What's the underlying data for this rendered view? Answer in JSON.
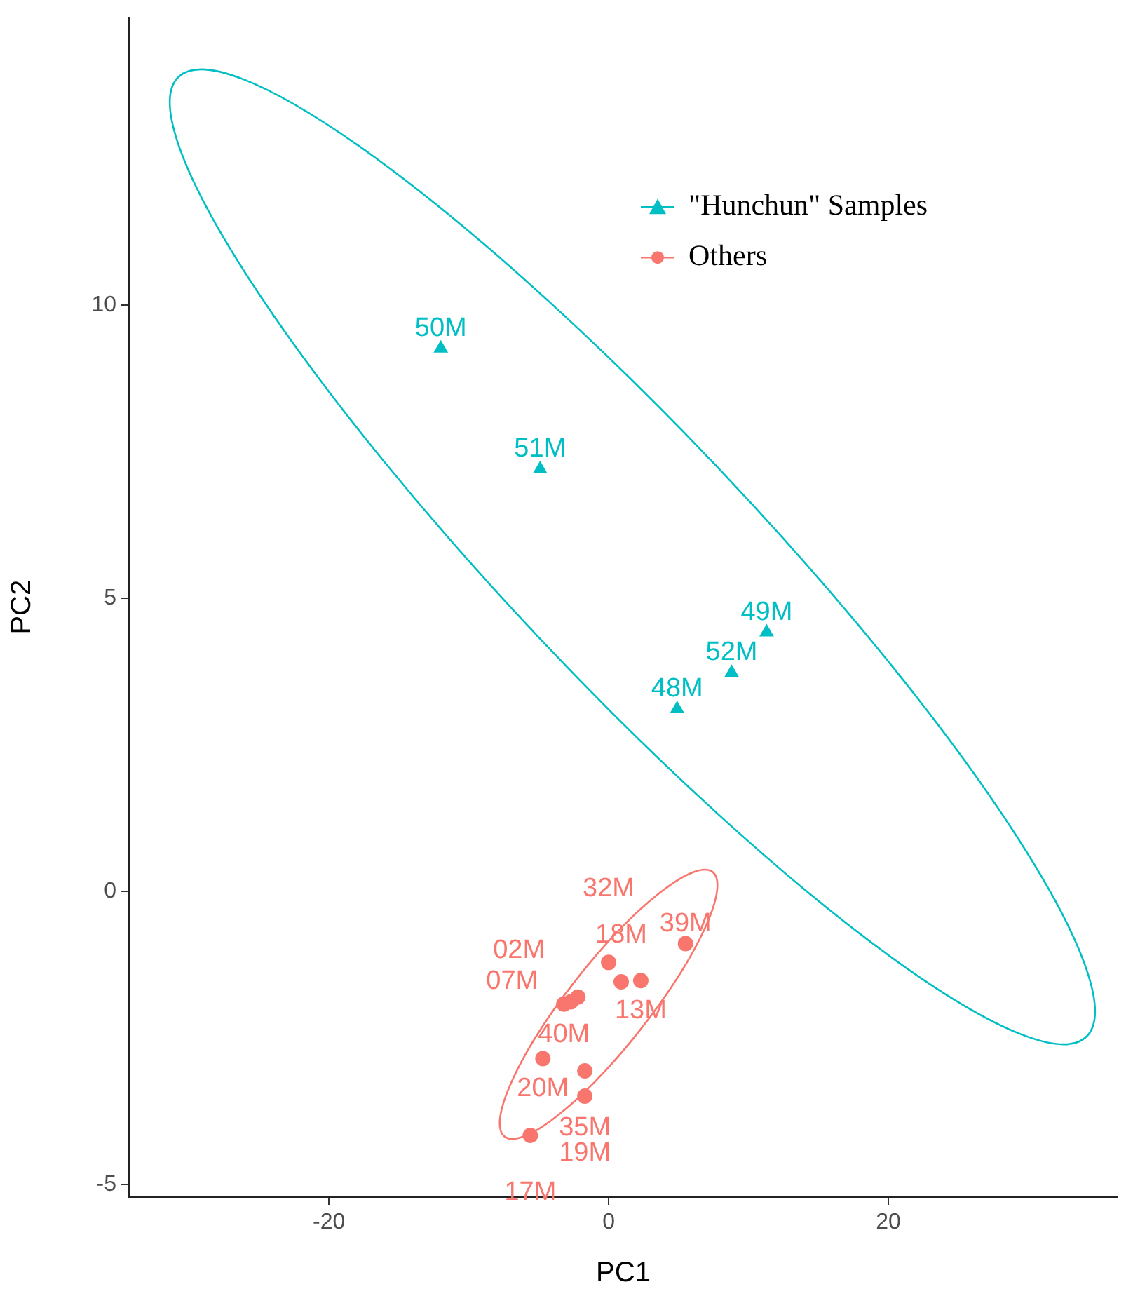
{
  "chart_data": {
    "type": "scatter",
    "xlabel": "PC1",
    "ylabel": "PC2",
    "xlim": [
      -34.3,
      36.4
    ],
    "ylim": [
      -5.2,
      14.9
    ],
    "xticks": [
      -20,
      0,
      20
    ],
    "yticks": [
      -5,
      0,
      5,
      10
    ],
    "grid": false,
    "legend": "top right",
    "series": [
      {
        "name": "\"Hunchun\" Samples",
        "color": "#00bfc4",
        "type": "scatter",
        "marker": "triangle",
        "x": [
          -12.0,
          -4.9,
          11.3,
          8.8,
          4.9
        ],
        "values": [
          9.26,
          7.2,
          4.42,
          3.73,
          3.11
        ]
      },
      {
        "name": "Others",
        "color": "#f8766d",
        "type": "scatter",
        "marker": "circle",
        "x": [
          5.5,
          2.3,
          0.9,
          0.0,
          -3.2,
          -2.7,
          -2.2,
          -4.7,
          -1.7,
          -1.7,
          -5.6
        ],
        "values": [
          -0.89,
          -1.52,
          -1.54,
          -1.21,
          -1.92,
          -1.88,
          -1.8,
          -2.85,
          -3.06,
          -3.49,
          -4.16
        ]
      }
    ],
    "annotations": [
      {
        "text": "50M",
        "x": -12.0,
        "y": 9.26
      },
      {
        "text": "51M",
        "x": -4.9,
        "y": 7.2
      },
      {
        "text": "49M",
        "x": 11.3,
        "y": 4.42
      },
      {
        "text": "52M",
        "x": 8.8,
        "y": 3.73
      },
      {
        "text": "48M",
        "x": 4.9,
        "y": 3.11
      },
      {
        "text": "39M",
        "x": 5.5,
        "y": -0.89
      },
      {
        "text": "13M",
        "x": 2.3,
        "y": -1.52
      },
      {
        "text": "18M",
        "x": 0.9,
        "y": -1.54
      },
      {
        "text": "32M",
        "x": 0.0,
        "y": -1.21
      },
      {
        "text": "40M",
        "x": -3.2,
        "y": -1.92
      },
      {
        "text": "07M",
        "x": -2.7,
        "y": -1.88
      },
      {
        "text": "02M",
        "x": -2.2,
        "y": -1.8
      },
      {
        "text": "20M",
        "x": -4.7,
        "y": -2.85
      },
      {
        "text": "35M",
        "x": -1.7,
        "y": -3.06
      },
      {
        "text": "19M",
        "x": -1.7,
        "y": -3.49
      },
      {
        "text": "17M",
        "x": -5.6,
        "y": -4.16
      }
    ]
  }
}
